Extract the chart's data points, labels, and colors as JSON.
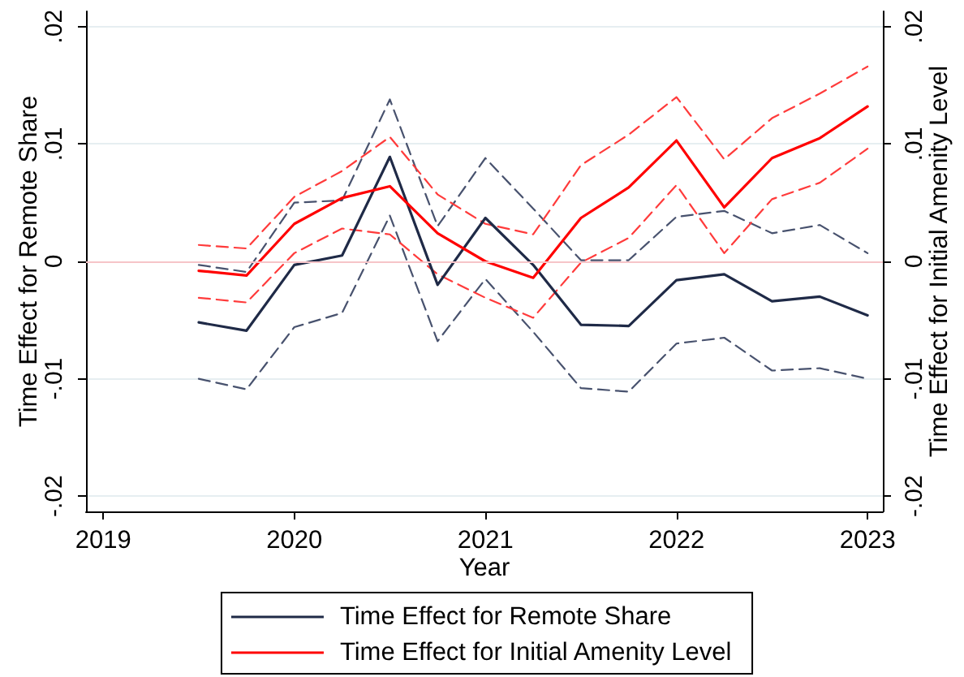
{
  "chart_data": {
    "type": "line",
    "xlabel": "Year",
    "ylabel": "Time Effect for Remote Share",
    "y2label": "Time Effect for Initial Amenity Level",
    "x": [
      2019.5,
      2019.75,
      2020,
      2020.25,
      2020.5,
      2020.75,
      2021,
      2021.25,
      2021.5,
      2021.75,
      2022,
      2022.25,
      2022.5,
      2022.75,
      2023
    ],
    "series": [
      {
        "name": "Time Effect for Remote Share",
        "color": "#1f2a47",
        "values": [
          -0.0052,
          -0.0059,
          -0.0003,
          0.0005,
          0.0089,
          -0.002,
          0.0037,
          -0.0003,
          -0.0054,
          -0.0055,
          -0.0016,
          -0.0011,
          -0.0034,
          -0.003,
          -0.0046
        ]
      },
      {
        "name": "Time Effect for Initial Amenity Level",
        "color": "#ff0000",
        "values": [
          -0.0008,
          -0.0012,
          0.0032,
          0.0054,
          0.0064,
          0.0024,
          0.0,
          -0.0014,
          0.0037,
          0.0063,
          0.0103,
          0.0046,
          0.0088,
          0.0105,
          0.0132
        ]
      },
      {
        "color": "#48526e",
        "line_style": "dashed",
        "values": [
          -0.0003,
          -0.0009,
          0.005,
          0.0052,
          0.0138,
          0.003,
          0.0088,
          0.0045,
          0.0001,
          0.0001,
          0.0038,
          0.0043,
          0.0024,
          0.0031,
          0.0007
        ]
      },
      {
        "color": "#48526e",
        "line_style": "dashed",
        "values": [
          -0.01,
          -0.0109,
          -0.0056,
          -0.0044,
          0.0039,
          -0.0068,
          -0.0015,
          -0.006,
          -0.0108,
          -0.0111,
          -0.007,
          -0.0065,
          -0.0093,
          -0.0091,
          -0.01
        ]
      },
      {
        "color": "#ff3b3b",
        "line_style": "dashed",
        "values": [
          0.0014,
          0.0011,
          0.0055,
          0.0077,
          0.0106,
          0.0057,
          0.0032,
          0.0023,
          0.0082,
          0.0108,
          0.014,
          0.0087,
          0.0122,
          0.0143,
          0.0166
        ]
      },
      {
        "color": "#ff3b3b",
        "line_style": "dashed",
        "values": [
          -0.0031,
          -0.0035,
          0.0007,
          0.0028,
          0.0023,
          -0.0011,
          -0.0031,
          -0.0048,
          -0.0001,
          0.002,
          0.0065,
          0.0007,
          0.0053,
          0.0067,
          0.0096
        ]
      }
    ],
    "xlim": [
      2018.91,
      2023.08
    ],
    "xticks": [
      2019,
      2020,
      2021,
      2022,
      2023
    ],
    "ylim": [
      -0.0213,
      0.0213
    ],
    "yticks": [
      {
        "value": -0.02,
        "label": "-.02"
      },
      {
        "value": -0.01,
        "label": "-.01"
      },
      0,
      {
        "value": 0.01,
        "label": ".01"
      },
      {
        "value": 0.02,
        "label": ".02"
      }
    ],
    "y2lim": [
      -0.0213,
      0.0213
    ],
    "y2ticks": [
      {
        "value": -0.02,
        "label": "-.02"
      },
      {
        "value": -0.01,
        "label": "-.01"
      },
      0,
      {
        "value": 0.01,
        "label": ".01"
      },
      {
        "value": 0.02,
        "label": ".02"
      }
    ],
    "ref_lines": [
      {
        "axis": "y",
        "value": 0,
        "color": "#f6c4c8"
      }
    ],
    "grid": "y",
    "legend": "bottom",
    "marker": "none",
    "line_style": "solid"
  }
}
